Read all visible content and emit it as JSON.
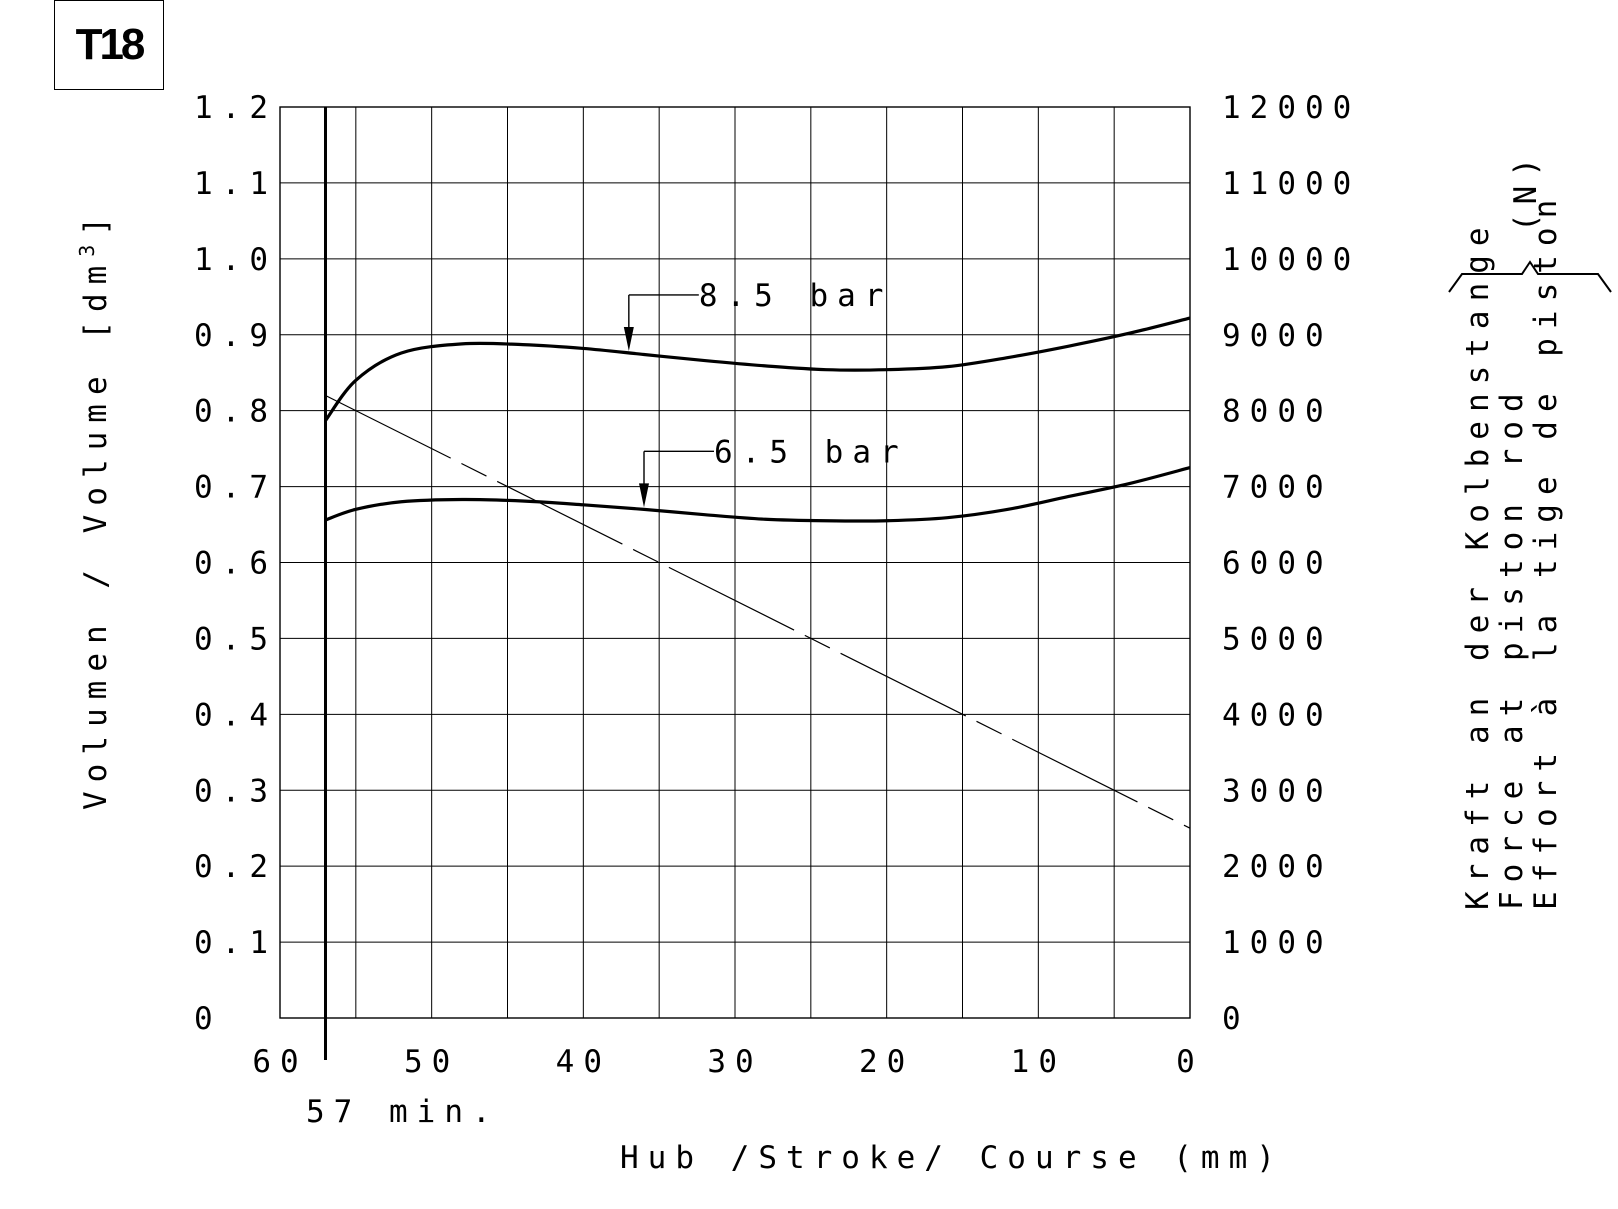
{
  "badge": "T18",
  "chart_data": {
    "type": "line",
    "xlabel": "Hub /Stroke/ Course (mm)",
    "ylabel": "Volumen / Volume [dm",
    "ylabel_sup": "3",
    "ylabel_end": "]",
    "y2label_lines": [
      "Kraft an der Kolbenstange",
      "Force at piston rod",
      "Effort à la tige de piston"
    ],
    "y2unit": "(N)",
    "x_ticks": [
      "60",
      "50",
      "40",
      "30",
      "20",
      "10",
      "0"
    ],
    "y_ticks": [
      "0",
      "0.1",
      "0.2",
      "0.3",
      "0.4",
      "0.5",
      "0.6",
      "0.7",
      "0.8",
      "0.9",
      "1.0",
      "1.1",
      "1.2"
    ],
    "y2_ticks": [
      "0",
      "1000",
      "2000",
      "3000",
      "4000",
      "5000",
      "6000",
      "7000",
      "8000",
      "9000",
      "10000",
      "11000",
      "12000"
    ],
    "xlim": [
      60,
      0
    ],
    "ylim": [
      0,
      1.2
    ],
    "y2lim": [
      0,
      12000
    ],
    "grid": true,
    "min_stroke": {
      "x": 57,
      "label": "57 min."
    },
    "series": [
      {
        "name": "8.5 bar",
        "axis": "right",
        "style": "solid-bold",
        "x": [
          57,
          55,
          52,
          48,
          44,
          40,
          36,
          32,
          28,
          24,
          20,
          16,
          12,
          8,
          4,
          0
        ],
        "y": [
          7870,
          8400,
          8760,
          8880,
          8870,
          8820,
          8740,
          8660,
          8590,
          8540,
          8540,
          8580,
          8700,
          8850,
          9020,
          9220
        ]
      },
      {
        "name": "6.5 bar",
        "axis": "right",
        "style": "solid-bold",
        "x": [
          57,
          55,
          52,
          48,
          44,
          40,
          36,
          32,
          28,
          24,
          20,
          16,
          12,
          8,
          4,
          0
        ],
        "y": [
          6560,
          6700,
          6800,
          6830,
          6810,
          6760,
          6700,
          6630,
          6570,
          6550,
          6550,
          6590,
          6700,
          6870,
          7040,
          7250
        ]
      },
      {
        "name": "",
        "axis": "left",
        "style": "dash-dot",
        "x": [
          57,
          0
        ],
        "y": [
          0.82,
          0.25
        ]
      }
    ],
    "annotations": [
      {
        "text": "8.5 bar",
        "series": 0,
        "at_x": 37
      },
      {
        "text": "6.5 bar",
        "series": 1,
        "at_x": 36
      }
    ]
  }
}
